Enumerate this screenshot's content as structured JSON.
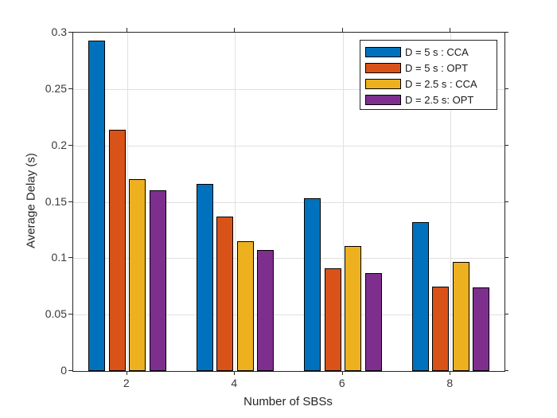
{
  "chart_data": {
    "type": "bar",
    "title": "",
    "xlabel": "Number of SBSs",
    "ylabel": "Average Delay (s)",
    "categories": [
      "2",
      "4",
      "6",
      "8"
    ],
    "x_values": [
      2,
      4,
      6,
      8
    ],
    "xlim": [
      1,
      9
    ],
    "ylim": [
      0,
      0.3
    ],
    "ytick_values": [
      0,
      0.05,
      0.1,
      0.15,
      0.2,
      0.25,
      0.3
    ],
    "ytick_labels": [
      "0",
      "0.05",
      "0.1",
      "0.15",
      "0.2",
      "0.25",
      "0.3"
    ],
    "grid": "on",
    "legend_position": "top-right",
    "series": [
      {
        "name": "D = 5 s : CCA",
        "color": "#0072BD",
        "values": [
          0.293,
          0.166,
          0.153,
          0.132
        ]
      },
      {
        "name": "D = 5 s : OPT",
        "color": "#D95319",
        "values": [
          0.214,
          0.137,
          0.091,
          0.075
        ]
      },
      {
        "name": "D = 2.5 s : CCA",
        "color": "#EDB120",
        "values": [
          0.17,
          0.115,
          0.111,
          0.097
        ]
      },
      {
        "name": "D = 2.5 s: OPT",
        "color": "#7E2F8E",
        "values": [
          0.16,
          0.107,
          0.087,
          0.074
        ]
      }
    ],
    "colors": {
      "grid": "#e0e0e0",
      "axis": "#262626",
      "bar_edge": "#000000",
      "background": "#ffffff"
    }
  }
}
